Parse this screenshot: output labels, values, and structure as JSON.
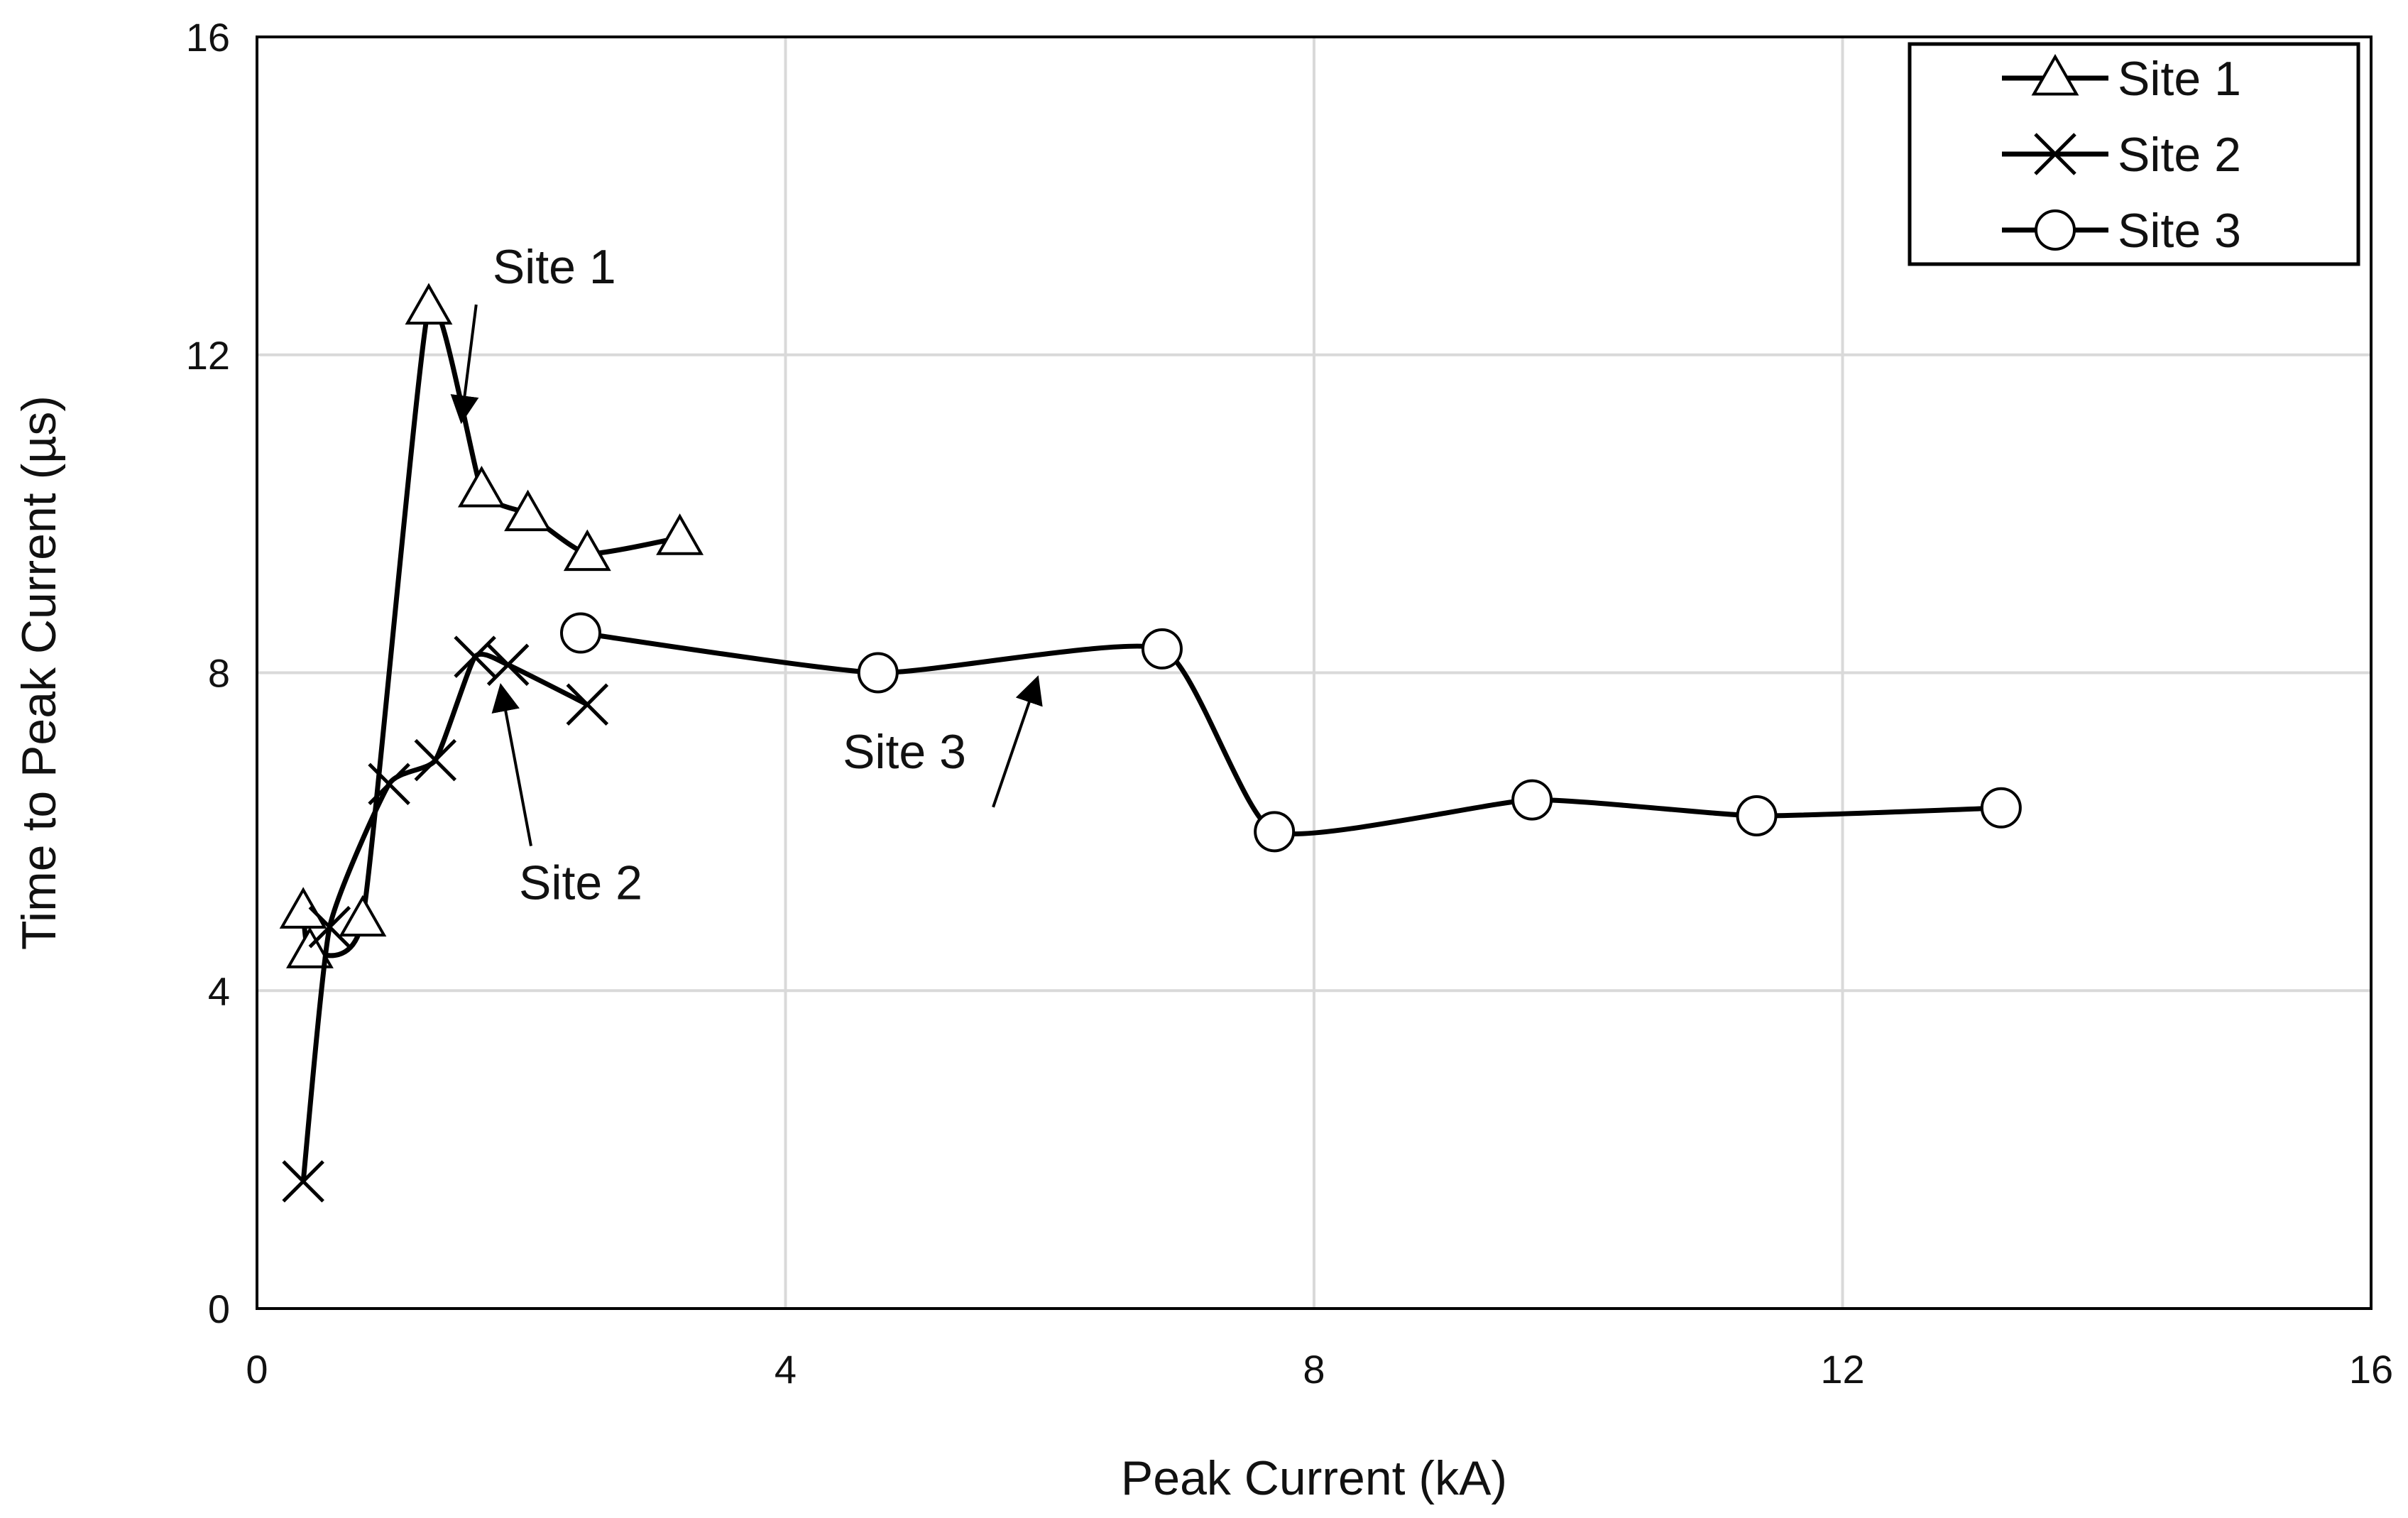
{
  "chart_data": {
    "type": "line",
    "title": "",
    "xlabel": "Peak Current (kA)",
    "ylabel": "Time to Peak Current (µs)",
    "xlim": [
      0,
      16
    ],
    "ylim": [
      0,
      16
    ],
    "xticks": [
      "0",
      "4",
      "8",
      "12",
      "16"
    ],
    "yticks": [
      "0",
      "4",
      "8",
      "12",
      "16"
    ],
    "grid": true,
    "legend_position": "top-right",
    "series": [
      {
        "name": "Site 1",
        "marker": "triangle",
        "points": [
          [
            0.35,
            5.0
          ],
          [
            0.4,
            4.5
          ],
          [
            0.8,
            4.9
          ],
          [
            1.3,
            12.6
          ],
          [
            1.7,
            10.3
          ],
          [
            2.05,
            10.0
          ],
          [
            2.5,
            9.5
          ],
          [
            3.2,
            9.7
          ]
        ]
      },
      {
        "name": "Site 2",
        "marker": "x",
        "points": [
          [
            0.35,
            1.6
          ],
          [
            0.55,
            4.8
          ],
          [
            1.0,
            6.6
          ],
          [
            1.35,
            6.9
          ],
          [
            1.65,
            8.2
          ],
          [
            1.9,
            8.1
          ],
          [
            2.5,
            7.6
          ]
        ]
      },
      {
        "name": "Site 3",
        "marker": "circle",
        "points": [
          [
            2.45,
            8.5
          ],
          [
            4.7,
            8.0
          ],
          [
            6.85,
            8.3
          ],
          [
            7.7,
            6.0
          ],
          [
            9.65,
            6.4
          ],
          [
            11.35,
            6.2
          ],
          [
            13.2,
            6.3
          ]
        ]
      }
    ],
    "annotations": [
      {
        "text": "Site 1",
        "x": 2.25,
        "y": 12.9,
        "arrow_to": [
          1.55,
          11.2
        ]
      },
      {
        "text": "Site 2",
        "x": 2.45,
        "y": 5.15,
        "arrow_to": [
          1.85,
          7.8
        ]
      },
      {
        "text": "Site 3",
        "x": 4.9,
        "y": 6.8,
        "arrow_to": [
          5.9,
          7.9
        ]
      }
    ]
  }
}
